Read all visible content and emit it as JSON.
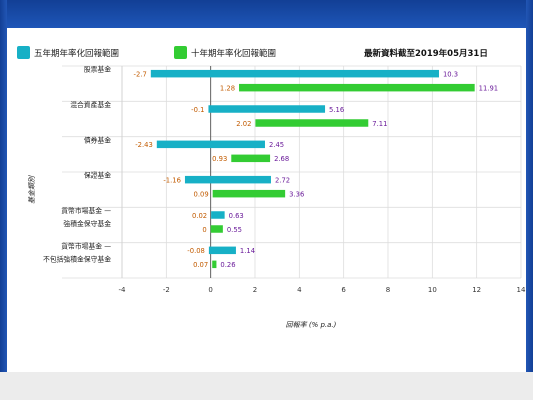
{
  "legend": {
    "five_year": {
      "label": "五年期年率化回報範圍",
      "color": "#17b0c6"
    },
    "ten_year": {
      "label": "十年期年率化回報範圍",
      "color": "#33cc33"
    }
  },
  "as_of": "最新資料截至2019年05月31日",
  "chart_data": {
    "type": "bar",
    "orientation": "horizontal-range",
    "xlabel": "回報率 (% p.a.)",
    "ylabel": "基金類別",
    "xlim": [
      -4,
      14
    ],
    "xticks": [
      -4,
      -2,
      0,
      2,
      4,
      6,
      8,
      10,
      12,
      14
    ],
    "grid": true,
    "legend_position": "top",
    "categories": [
      [
        "股票基金"
      ],
      [
        "混合資產基金"
      ],
      [
        "債券基金"
      ],
      [
        "保證基金"
      ],
      [
        "貨幣市場基金 —",
        "強積金保守基金"
      ],
      [
        "貨幣市場基金 —",
        "不包括強積金保守基金"
      ]
    ],
    "series": [
      {
        "name": "五年期年率化回報範圍",
        "color": "#17b0c6",
        "ranges": [
          [
            -2.7,
            10.3
          ],
          [
            -0.1,
            5.16
          ],
          [
            -2.43,
            2.45
          ],
          [
            -1.16,
            2.72
          ],
          [
            0.02,
            0.63
          ],
          [
            -0.08,
            1.14
          ]
        ]
      },
      {
        "name": "十年期年率化回報範圍",
        "color": "#33cc33",
        "ranges": [
          [
            1.28,
            11.91
          ],
          [
            2.02,
            7.11
          ],
          [
            0.93,
            2.68
          ],
          [
            0.09,
            3.36
          ],
          [
            0,
            0.55
          ],
          [
            0.07,
            0.26
          ]
        ]
      }
    ]
  }
}
